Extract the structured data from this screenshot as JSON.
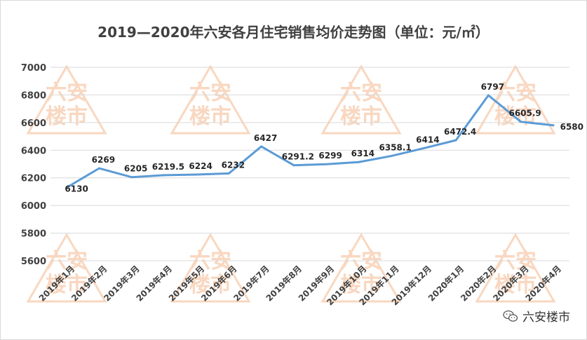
{
  "chart_data": {
    "type": "line",
    "title": "2019—2020年六安各月住宅销售均价走势图（单位：元/㎡）",
    "categories": [
      "2019年1月",
      "2019年2月",
      "2019年3月",
      "2019年4月",
      "2019年5月",
      "2019年6月",
      "2019年7月",
      "2019年8月",
      "2019年9月",
      "2019年10月",
      "2019年11月",
      "2019年12月",
      "2020年1月",
      "2020年2月",
      "2020年3月",
      "2020年4月"
    ],
    "series": [
      {
        "values": [
          6130,
          6269,
          6205,
          6219.5,
          6224,
          6232,
          6427,
          6291.2,
          6299,
          6314,
          6358.1,
          6414,
          6472.4,
          6797,
          6605.9,
          6580
        ],
        "labels": [
          "6130",
          "6269",
          "6205",
          "6219.5",
          "6224",
          "6232",
          "6427",
          "6291.2",
          "6299",
          "6314",
          "6358.1",
          "6414",
          "6472.4",
          "6797",
          "6605.9",
          "6580"
        ]
      }
    ],
    "ylim": [
      5600,
      7000
    ],
    "yticks": [
      5600,
      5800,
      6000,
      6200,
      6400,
      6600,
      6800,
      7000
    ],
    "grid": true,
    "line_color": "#5b9bd5"
  },
  "watermark": {
    "text_top": "六安",
    "text_bottom": "楼市",
    "color": "#f4b183"
  },
  "brand": {
    "label": "六安楼市",
    "icon": "wechat-icon"
  }
}
